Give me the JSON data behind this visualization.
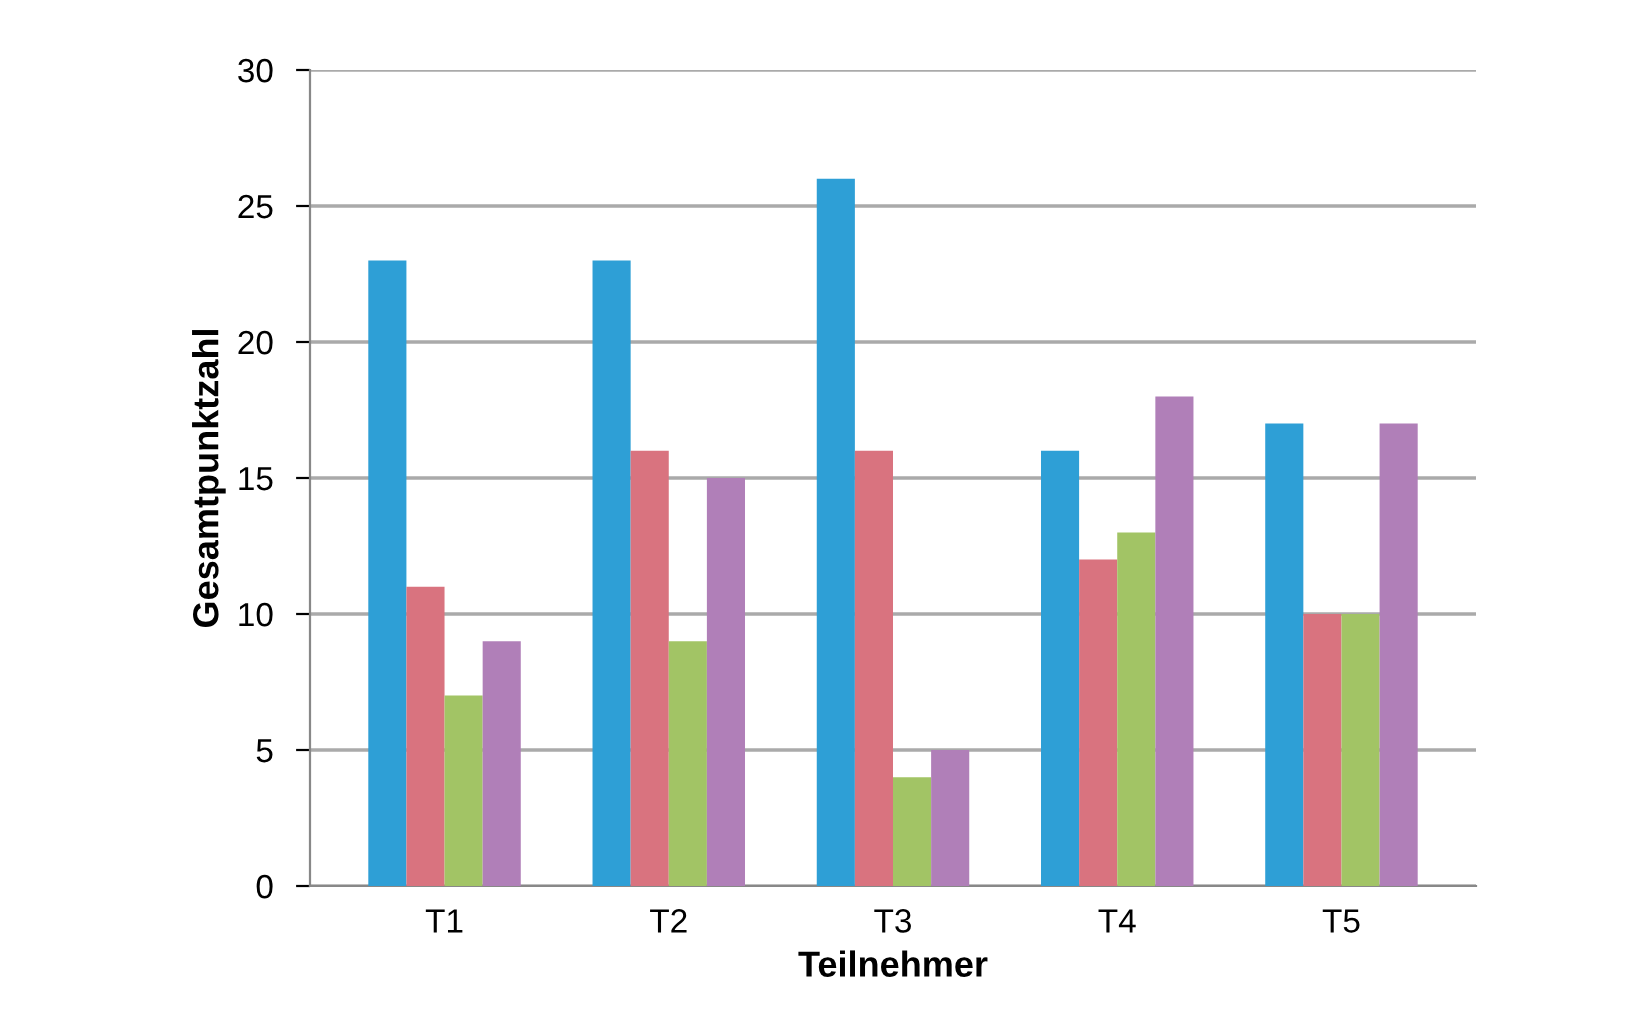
{
  "chart_data": {
    "type": "bar",
    "xlabel": "Teilnehmer",
    "ylabel": "Gesamtpunktzahl",
    "categories": [
      "T1",
      "T2",
      "T3",
      "T4",
      "T5"
    ],
    "series": [
      {
        "color": "#2e9fd6",
        "values": [
          23,
          23,
          26,
          16,
          17
        ]
      },
      {
        "color": "#d9737f",
        "values": [
          11,
          16,
          16,
          12,
          10
        ]
      },
      {
        "color": "#a2c465",
        "values": [
          7,
          9,
          4,
          13,
          10
        ]
      },
      {
        "color": "#b07fb8",
        "values": [
          9,
          15,
          5,
          18,
          17
        ]
      }
    ],
    "ylim": [
      0,
      30
    ],
    "yticks": [
      0,
      5,
      10,
      15,
      20,
      25,
      30
    ],
    "grid": "y",
    "legend": false
  }
}
